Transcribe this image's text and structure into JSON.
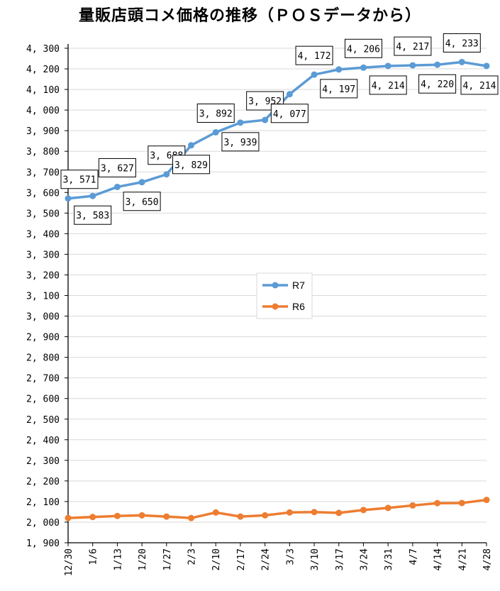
{
  "chart_data": {
    "type": "line",
    "title": "量販店頭コメ価格の推移（ＰＯＳデータから）",
    "categories": [
      "12/30",
      "1/6",
      "1/13",
      "1/20",
      "1/27",
      "2/3",
      "2/10",
      "2/17",
      "2/24",
      "3/3",
      "3/10",
      "3/17",
      "3/24",
      "3/31",
      "4/7",
      "4/14",
      "4/21",
      "4/28"
    ],
    "ylim": [
      1900,
      4300
    ],
    "ytick_step": 100,
    "ytick_labels": [
      "1, 900",
      "2, 000",
      "2, 100",
      "2, 200",
      "2, 300",
      "2, 400",
      "2, 500",
      "2, 600",
      "2, 700",
      "2, 800",
      "2, 900",
      "3, 000",
      "3, 100",
      "3, 200",
      "3, 300",
      "3, 400",
      "3, 500",
      "3, 600",
      "3, 700",
      "3, 800",
      "3, 900",
      "4, 000",
      "4, 100",
      "4, 200",
      "4, 300"
    ],
    "grid": "horizontal",
    "legend_position": "center",
    "series": [
      {
        "name": "R7",
        "color": "#5B9BD5",
        "values": [
          3571,
          3583,
          3627,
          3650,
          3688,
          3829,
          3892,
          3939,
          3952,
          4077,
          4172,
          4197,
          4206,
          4214,
          4217,
          4220,
          4233,
          4214
        ],
        "labels": [
          "3, 571",
          "3, 583",
          "3, 627",
          "3, 650",
          "3, 688",
          "3, 829",
          "3, 892",
          "3, 939",
          "3, 952",
          "4, 077",
          "4, 172",
          "4, 197",
          "4, 206",
          "4, 214",
          "4, 217",
          "4, 220",
          "4, 233",
          "4, 214"
        ]
      },
      {
        "name": "R6",
        "color": "#ED7D31",
        "values": [
          2020,
          2025,
          2030,
          2033,
          2027,
          2020,
          2047,
          2027,
          2033,
          2047,
          2049,
          2045,
          2059,
          2069,
          2081,
          2092,
          2093,
          2108
        ],
        "labels": []
      }
    ]
  }
}
